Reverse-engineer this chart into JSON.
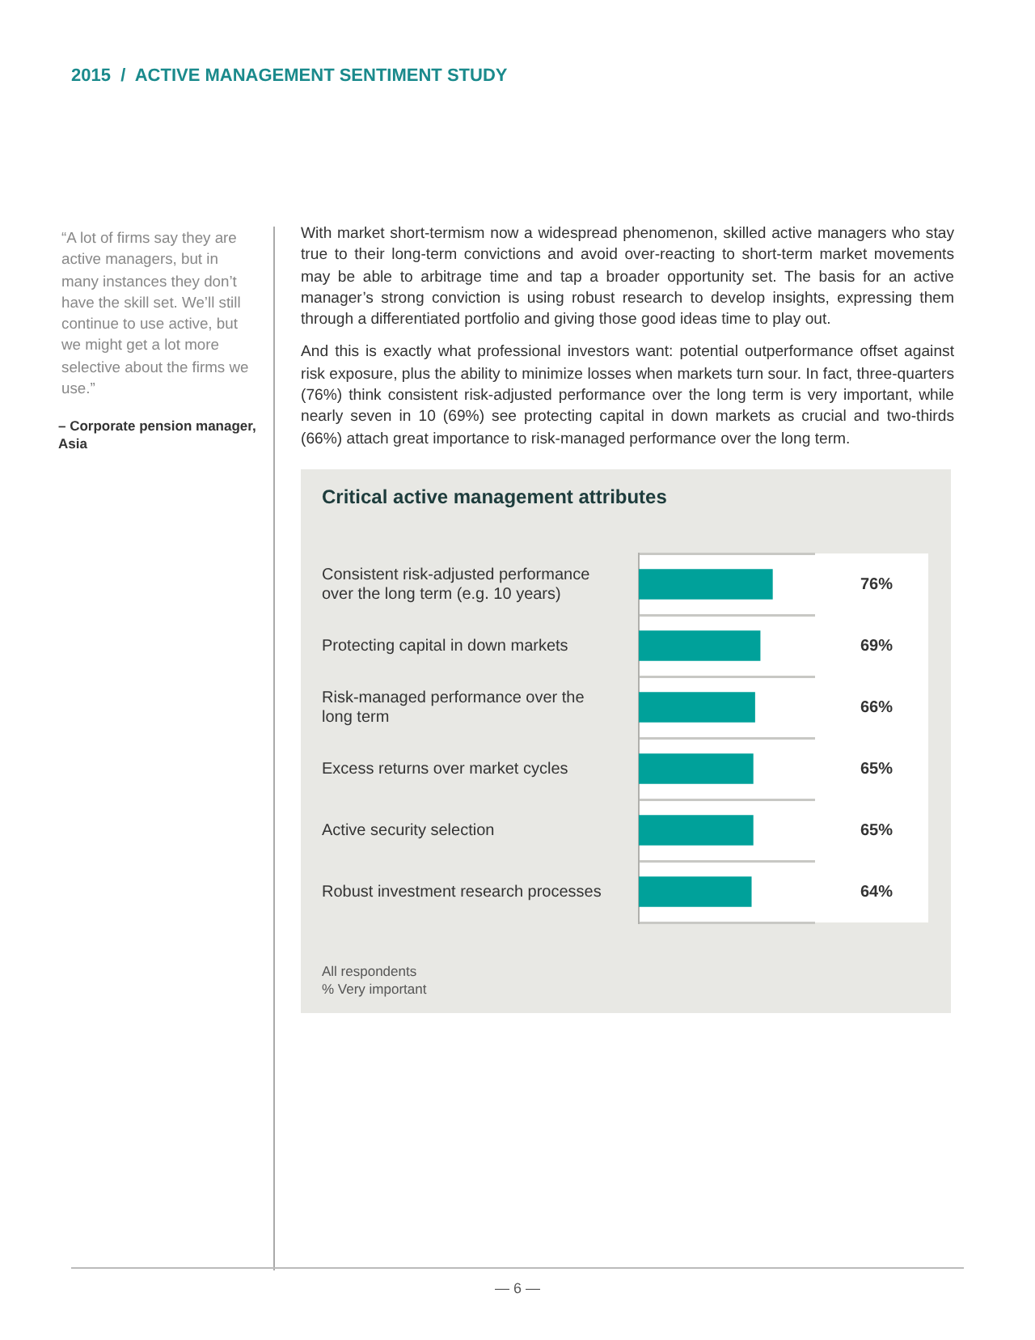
{
  "chart_data": {
    "type": "bar",
    "orientation": "horizontal",
    "title": "Critical active management attributes",
    "categories": [
      "Consistent risk-adjusted performance over the long term (e.g. 10 years)",
      "Protecting capital in down markets",
      "Risk-managed performance over the long term",
      "Excess returns over market cycles",
      "Active security selection",
      "Robust investment research processes"
    ],
    "values": [
      76,
      69,
      66,
      65,
      65,
      64
    ],
    "value_labels": [
      "76%",
      "69%",
      "66%",
      "65%",
      "65%",
      "64%"
    ],
    "color": "#00a19a",
    "grid": "y",
    "legend": false,
    "tick_labels": "y",
    "annotations": [
      "2015  /  ACTIVE MANAGEMENT SENTIMENT STUDY",
      "“A lot of firms say they are active managers, but in many instances they don’t have the skill set. We’ll still continue to use active, but we might get a lot more selective about the firms we use.”",
      "– Corporate pension manager, Asia",
      "With market short-termism now a widespread phenomenon, skilled active managers who stay true to their long-term convictions and avoid over-reacting to short-term market movements may be able to arbitrage time and tap a broader opportunity set. The basis for an active manager’s strong conviction is using robust research to develop insights, expressing them through a differentiated portfolio and giving those good ideas time to play out.",
      "And this is exactly what professional investors want: potential outperformance offset against risk exposure, plus the ability to minimize losses when markets turn sour. In fact, three-quarters (76%) think consistent risk-adjusted performance over the long term is very important, while nearly seven in 10 (69%) see protecting capital in down markets as crucial and two-thirds (66%) attach great importance to risk-managed performance over the long term.",
      "All respondents",
      "% Very important",
      "— 6 —"
    ]
  }
}
